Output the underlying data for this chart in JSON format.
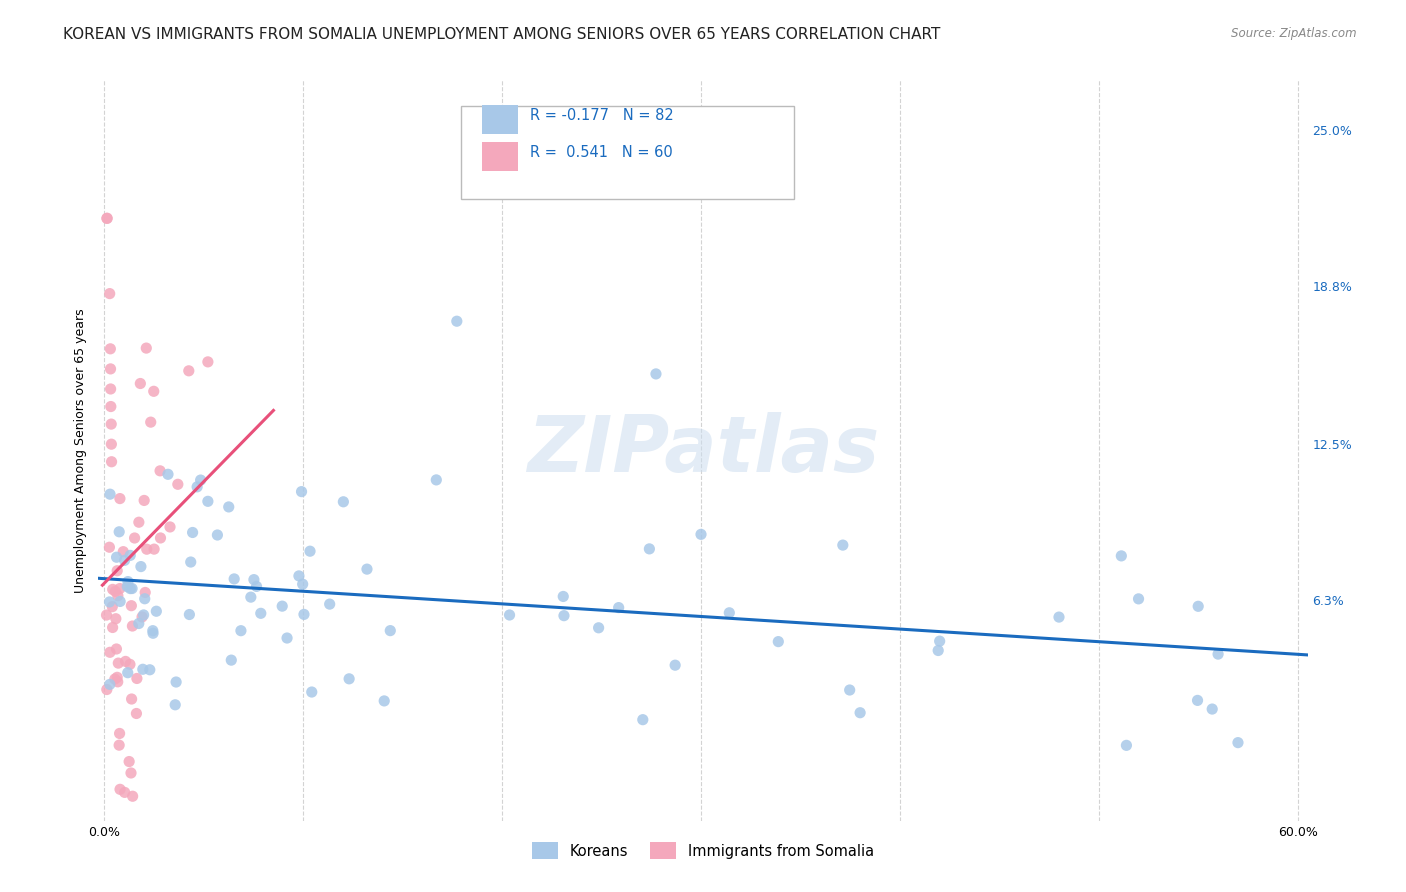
{
  "title": "KOREAN VS IMMIGRANTS FROM SOMALIA UNEMPLOYMENT AMONG SENIORS OVER 65 YEARS CORRELATION CHART",
  "source": "Source: ZipAtlas.com",
  "ylabel": "Unemployment Among Seniors over 65 years",
  "xlim": [
    -0.003,
    0.605
  ],
  "ylim": [
    -0.025,
    0.27
  ],
  "xticks": [
    0.0,
    0.1,
    0.2,
    0.3,
    0.4,
    0.5,
    0.6
  ],
  "xticklabels": [
    "0.0%",
    "",
    "",
    "",
    "",
    "",
    "60.0%"
  ],
  "yticks_right": [
    0.0,
    0.063,
    0.125,
    0.188,
    0.25
  ],
  "ytick_labels_right": [
    "",
    "6.3%",
    "12.5%",
    "18.8%",
    "25.0%"
  ],
  "korean_color": "#a8c8e8",
  "somalia_color": "#f4a8bc",
  "korean_line_color": "#1a6bbf",
  "somalia_line_color": "#e8507a",
  "R_korean": -0.177,
  "N_korean": 82,
  "R_somalia": 0.541,
  "N_somalia": 60,
  "watermark": "ZIPatlas",
  "background_color": "#ffffff",
  "grid_color": "#c8c8c8",
  "title_fontsize": 11,
  "axis_label_fontsize": 9,
  "tick_fontsize": 9
}
